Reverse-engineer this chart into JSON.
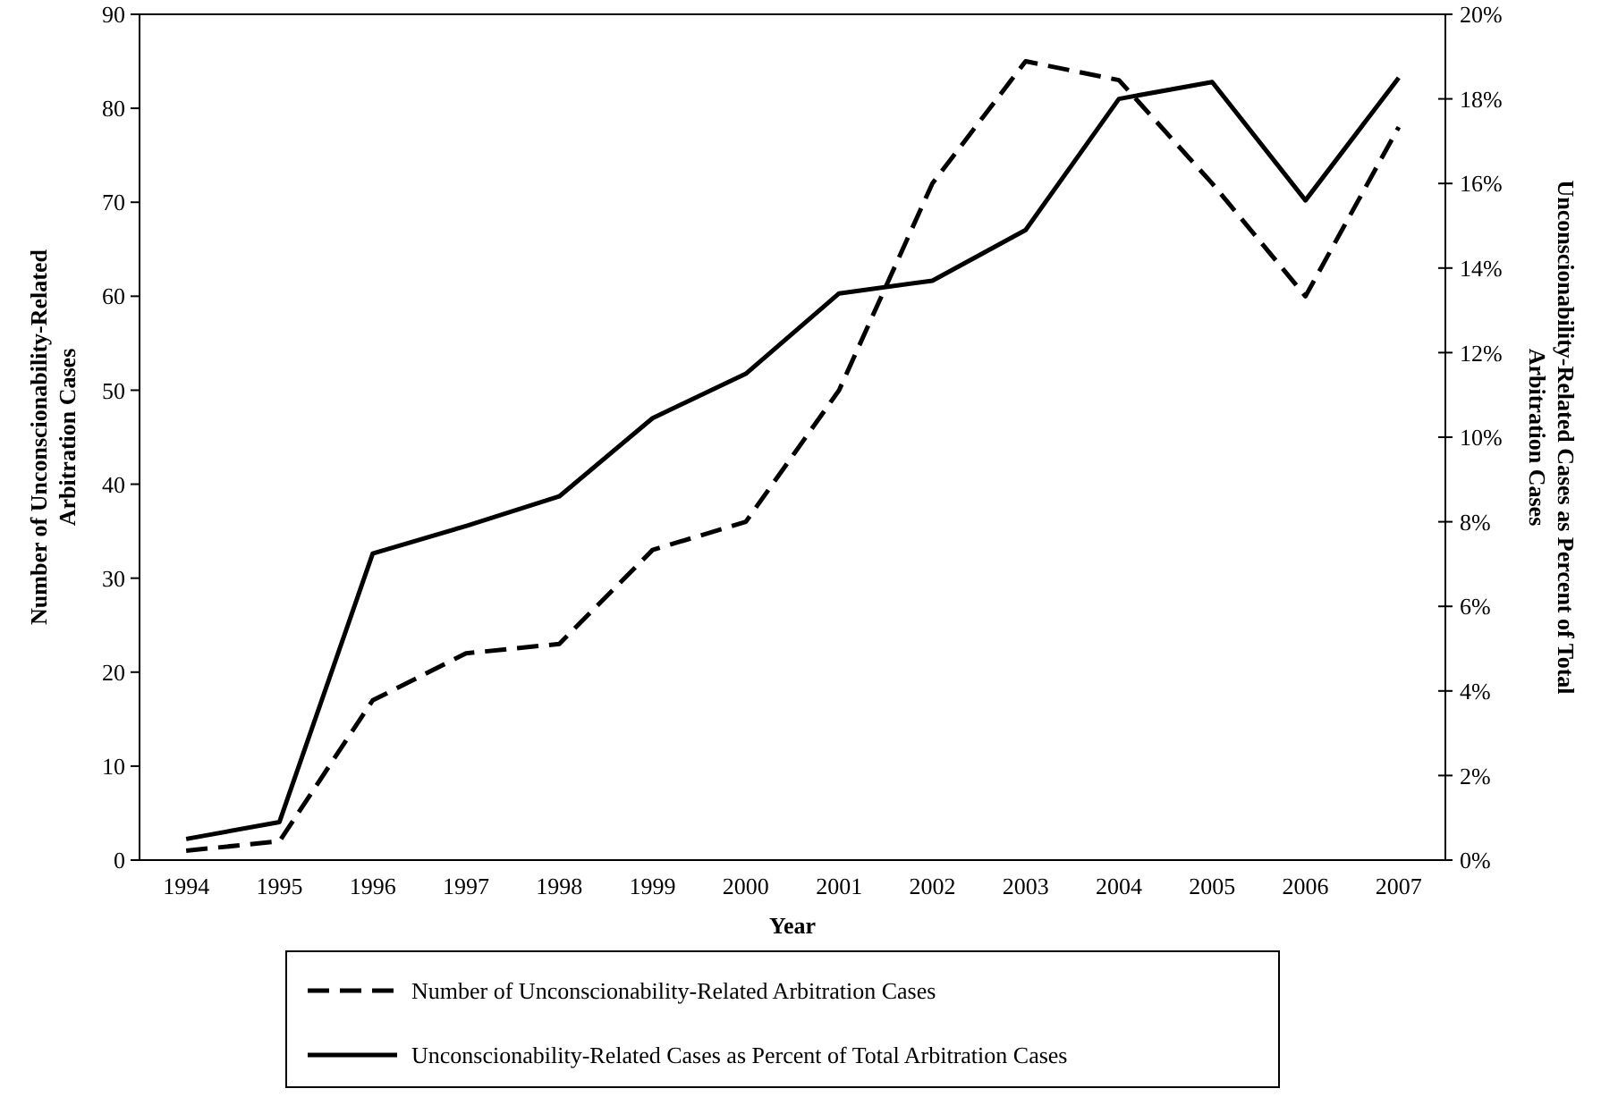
{
  "chart_data": {
    "type": "line",
    "xlabel": "Year",
    "ylabel": "Number of Unconscionability-Related Arbitration Cases",
    "y2label": "Unconscionability-Related Cases as Percent of Total Arbitration Cases",
    "categories": [
      "1994",
      "1995",
      "1996",
      "1997",
      "1998",
      "1999",
      "2000",
      "2001",
      "2002",
      "2003",
      "2004",
      "2005",
      "2006",
      "2007"
    ],
    "series": [
      {
        "name": "Number of Unconscionability-Related Arbitration Cases",
        "color": "#000000",
        "line_style": "dashed",
        "values": [
          1,
          2,
          17,
          22,
          23,
          33,
          36,
          50,
          72,
          85,
          83,
          72,
          60,
          78
        ]
      },
      {
        "name": "Unconscionability-Related Cases as Percent of Total Arbitration Cases",
        "color": "#000000",
        "line_style": "solid",
        "axis": "y2",
        "values": [
          0.5,
          0.9,
          7.25,
          7.9,
          8.6,
          10.45,
          11.5,
          13.4,
          13.7,
          14.9,
          18.0,
          18.4,
          15.6,
          18.5
        ]
      }
    ],
    "ylim": [
      0,
      90
    ],
    "yticks": [
      0,
      10,
      20,
      30,
      40,
      50,
      60,
      70,
      80,
      90
    ],
    "y2lim": [
      0,
      20
    ],
    "y2ticks": [
      {
        "value": 0,
        "label": "0%"
      },
      {
        "value": 2,
        "label": "2%"
      },
      {
        "value": 4,
        "label": "4%"
      },
      {
        "value": 6,
        "label": "6%"
      },
      {
        "value": 8,
        "label": "8%"
      },
      {
        "value": 10,
        "label": "10%"
      },
      {
        "value": 12,
        "label": "12%"
      },
      {
        "value": 14,
        "label": "14%"
      },
      {
        "value": 16,
        "label": "16%"
      },
      {
        "value": 18,
        "label": "18%"
      },
      {
        "value": 20,
        "label": "20%"
      }
    ],
    "grid": false,
    "legend": "bottom"
  }
}
